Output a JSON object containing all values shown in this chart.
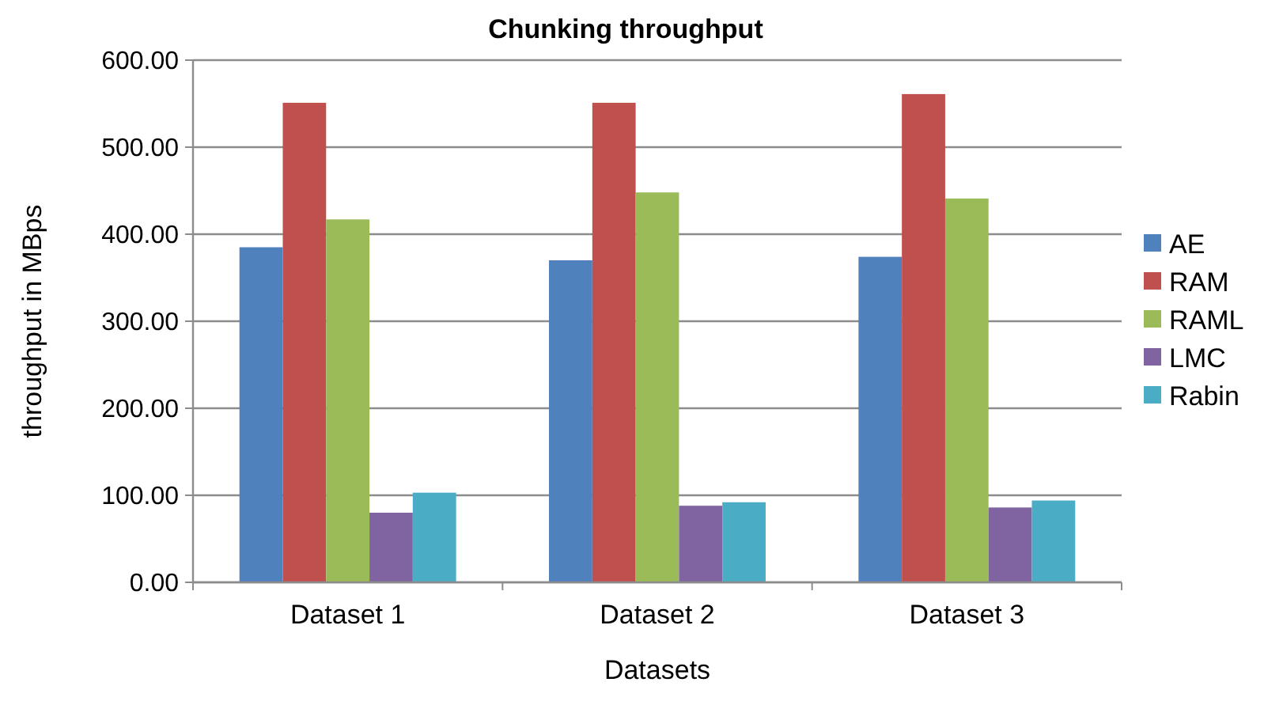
{
  "chart_data": {
    "type": "bar",
    "title": "Chunking throughput",
    "xlabel": "Datasets",
    "ylabel": "throughput in MBps",
    "categories": [
      "Dataset 1",
      "Dataset 2",
      "Dataset 3"
    ],
    "series": [
      {
        "name": "AE",
        "color": "#4f81bd",
        "values": [
          385,
          370,
          374
        ]
      },
      {
        "name": "RAM",
        "color": "#c0504d",
        "values": [
          551,
          551,
          561
        ]
      },
      {
        "name": "RAML",
        "color": "#9bbb59",
        "values": [
          417,
          448,
          441
        ]
      },
      {
        "name": "LMC",
        "color": "#8064a2",
        "values": [
          80,
          88,
          86
        ]
      },
      {
        "name": "Rabin",
        "color": "#4bacc6",
        "values": [
          103,
          92,
          94
        ]
      }
    ],
    "ylim": [
      0,
      600
    ],
    "yticks": [
      {
        "value": 0,
        "label": "0.00"
      },
      {
        "value": 100,
        "label": "100.00"
      },
      {
        "value": 200,
        "label": "200.00"
      },
      {
        "value": 300,
        "label": "300.00"
      },
      {
        "value": 400,
        "label": "400.00"
      },
      {
        "value": 500,
        "label": "500.00"
      },
      {
        "value": 600,
        "label": "600.00"
      }
    ],
    "grid": "y",
    "legend": "right"
  }
}
